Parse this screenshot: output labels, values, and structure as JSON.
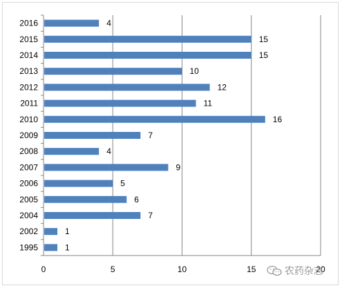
{
  "chart_data": {
    "type": "bar",
    "orientation": "horizontal",
    "categories": [
      "2016",
      "2015",
      "2014",
      "2013",
      "2012",
      "2011",
      "2010",
      "2009",
      "2008",
      "2007",
      "2006",
      "2005",
      "2004",
      "2002",
      "1995"
    ],
    "values": [
      4,
      15,
      15,
      10,
      12,
      11,
      16,
      7,
      4,
      9,
      5,
      6,
      7,
      1,
      1
    ],
    "data_labels": [
      "4",
      "15",
      "15",
      "10",
      "12",
      "11",
      "16",
      "7",
      "4",
      "9",
      "5",
      "6",
      "7",
      "1",
      "1"
    ],
    "x_ticks": [
      "0",
      "5",
      "10",
      "15",
      "20"
    ],
    "xlim": [
      0,
      20
    ],
    "title": "",
    "xlabel": "",
    "ylabel": "",
    "grid": "vertical",
    "legend": "none",
    "bar_color": "#4f81bd",
    "grid_color": "#868686"
  },
  "watermark": {
    "text": "农药杂志",
    "icon": "wechat-icon"
  }
}
